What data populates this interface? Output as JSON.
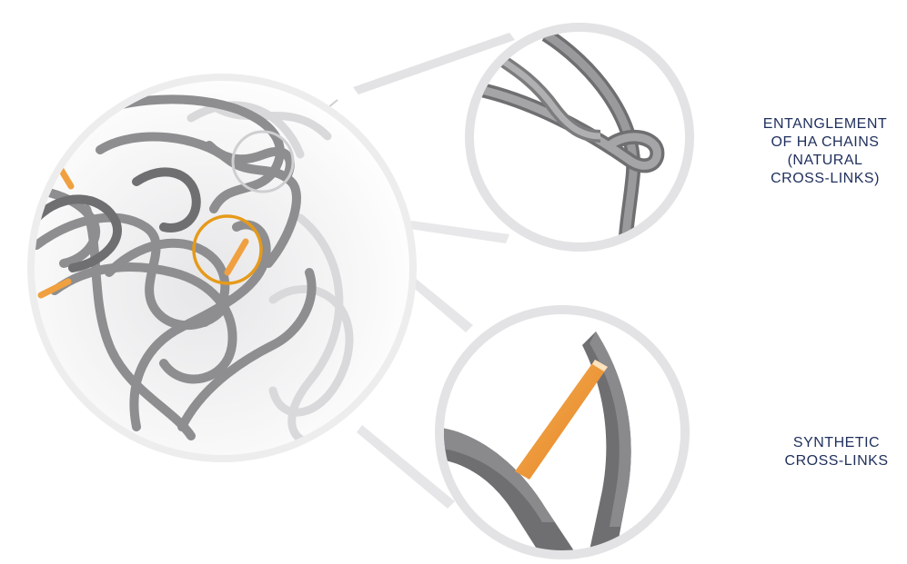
{
  "labels": {
    "natural": [
      "ENTANGLEMENT",
      "OF HA CHAINS",
      "(NATURAL",
      "CROSS-LINKS)"
    ],
    "synthetic": [
      "SYNTHETIC",
      "CROSS-LINKS"
    ]
  },
  "colors": {
    "chain": "#8e8e90",
    "chain_dark": "#6f6f72",
    "chain_light": "#c9c9cb",
    "crosslink": "#f0a040",
    "crosslink_dark": "#e07f20",
    "callout_orange": "#e69a1a",
    "callout_gray": "#cfcfd1",
    "lens_rim": "#e3e3e5",
    "label_text": "#1f2f5c"
  }
}
